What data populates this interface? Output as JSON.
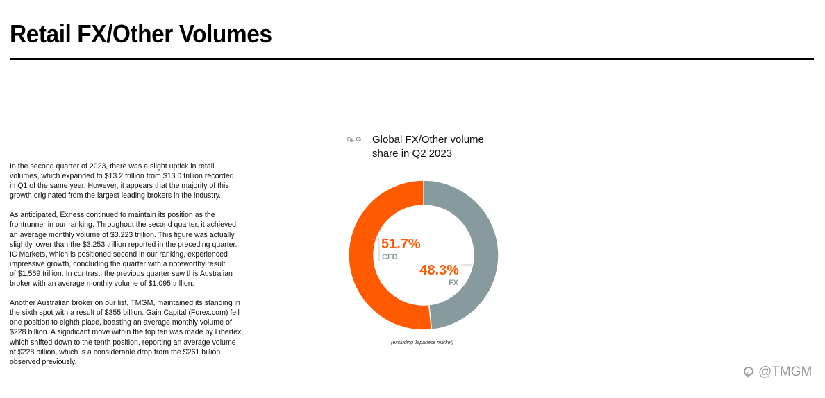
{
  "header": {
    "title": "Retail FX/Other Volumes"
  },
  "article": {
    "paragraphs": [
      "In the second quarter of 2023, there was a slight uptick in retail\nvolumes, which expanded to $13.2 trillion from $13.0 trillion recorded\nin Q1 of the same year. However, it appears that the majority of this\ngrowth originated from the largest leading brokers in the industry.",
      "As anticipated, Exness continued to maintain its position as the\nfrontrunner in our ranking. Throughout the second quarter, it achieved\nan average monthly volume of $3.223 trillion. This figure was actually\nslightly lower than the $3.253 trillion reported in the preceding quarter.\nIC Markets, which is positioned second in our ranking, experienced\nimpressive growth, concluding the quarter with a noteworthy result\nof $1.569 trillion. In contrast, the previous quarter saw this Australian\nbroker with an average monthly volume of $1.095 trillion.",
      "Another Australian broker on our list, TMGM, maintained its standing in\nthe sixth spot with a result of $355 billion. Gain Capital (Forex.com) fell\none position to eighth place, boasting an average monthly volume of\n$228 billion. A significant move within the top ten was made by Libertex,\nwhich shifted down to the tenth position, reporting an average volume\nof $228 billion, which is a considerable drop from the $261 billion\nobserved previously."
    ]
  },
  "figure": {
    "label": "Fig. 05",
    "title": "Global FX/Other volume\nshare in Q2 2023",
    "footnote": "(excluding Japanese market)"
  },
  "chart_data": {
    "type": "pie",
    "style": "donut",
    "title": "Global FX/Other volume share in Q2 2023",
    "series": [
      {
        "name": "CFD",
        "value": 51.7,
        "label": "51.7%",
        "color": "#ff5a00"
      },
      {
        "name": "FX",
        "value": 48.3,
        "label": "48.3%",
        "color": "#879a9d"
      }
    ],
    "value_color": "#ff5a00",
    "name_color": "#879a9d"
  },
  "watermark": {
    "text": "@TMGM",
    "icon": "social-logo-icon"
  }
}
